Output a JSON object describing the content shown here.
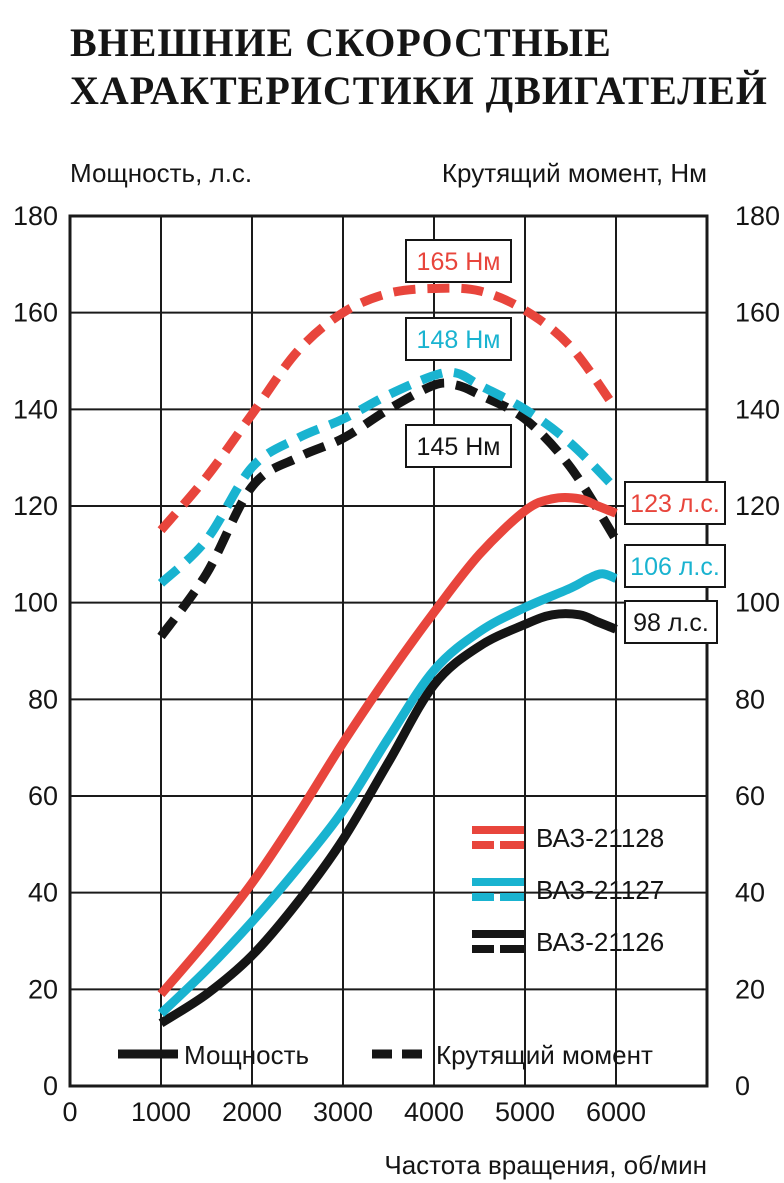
{
  "chart_data": {
    "type": "line",
    "title_lines": [
      "ВНЕШНИЕ СКОРОСТНЫЕ",
      "ХАРАКТЕРИСТИКИ ДВИГАТЕЛЕЙ"
    ],
    "ylabel_left": "Мощность, л.с.",
    "ylabel_right": "Крутящий момент, Нм",
    "xlabel": "Частота вращения, об/мин",
    "xlim": [
      0,
      7000
    ],
    "ylim": [
      0,
      180
    ],
    "x_ticks": [
      "0",
      "1000",
      "2000",
      "3000",
      "4000",
      "5000",
      "6000"
    ],
    "y_ticks": [
      "0",
      "20",
      "40",
      "60",
      "80",
      "100",
      "120",
      "140",
      "160",
      "180"
    ],
    "grid": true,
    "colors": {
      "VAZ-21128": "#e8453c",
      "VAZ-21127": "#19b3d0",
      "VAZ-21126": "#151515"
    },
    "series": [
      {
        "name": "ВАЗ-21128 мощность",
        "engine": "VAZ-21128",
        "kind": "power",
        "x": [
          1000,
          1500,
          2000,
          2500,
          3000,
          3500,
          4000,
          4500,
          5000,
          5300,
          5600,
          5800,
          6000
        ],
        "values": [
          19,
          30,
          42,
          56,
          71,
          85,
          98,
          110,
          119,
          121.5,
          121.5,
          120,
          118.5
        ]
      },
      {
        "name": "ВАЗ-21127 мощность",
        "engine": "VAZ-21127",
        "kind": "power",
        "x": [
          1000,
          1500,
          2000,
          2500,
          3000,
          3500,
          4000,
          4500,
          5000,
          5500,
          5700,
          5850,
          6000
        ],
        "values": [
          15,
          24,
          34,
          45,
          57,
          72,
          86,
          94,
          99,
          103,
          105,
          106,
          105
        ]
      },
      {
        "name": "ВАЗ-21126 мощность",
        "engine": "VAZ-21126",
        "kind": "power",
        "x": [
          1000,
          1500,
          2000,
          2500,
          3000,
          3500,
          4000,
          4500,
          5000,
          5300,
          5600,
          5800,
          6000
        ],
        "values": [
          13,
          19,
          27,
          38,
          51,
          67,
          83,
          91,
          95.5,
          97.5,
          97.5,
          96,
          94.5
        ]
      },
      {
        "name": "ВАЗ-21128 момент",
        "engine": "VAZ-21128",
        "kind": "torque",
        "x": [
          1000,
          1500,
          2000,
          2500,
          3000,
          3500,
          4000,
          4500,
          5000,
          5500,
          6000
        ],
        "values": [
          115,
          126,
          139,
          152,
          160,
          164,
          165,
          164.5,
          160.5,
          153,
          140
        ]
      },
      {
        "name": "ВАЗ-21127 момент",
        "engine": "VAZ-21127",
        "kind": "torque",
        "x": [
          1000,
          1500,
          2000,
          2500,
          3000,
          3500,
          4000,
          4250,
          4500,
          5000,
          5500,
          6000
        ],
        "values": [
          104,
          113,
          128,
          134,
          138,
          143,
          147,
          147.5,
          145,
          140,
          133,
          123.5
        ]
      },
      {
        "name": "ВАЗ-21126 момент",
        "engine": "VAZ-21126",
        "kind": "torque",
        "x": [
          1000,
          1500,
          2000,
          2500,
          3000,
          3500,
          4000,
          4250,
          4500,
          5000,
          5500,
          6000
        ],
        "values": [
          93,
          106,
          124,
          130,
          134,
          140,
          145,
          145,
          143,
          138,
          128,
          113
        ]
      }
    ],
    "callouts": [
      {
        "text": "165 Нм",
        "engine": "VAZ-21128"
      },
      {
        "text": "148 Нм",
        "engine": "VAZ-21127"
      },
      {
        "text": "145 Нм",
        "engine": "VAZ-21126"
      },
      {
        "text": "123 л.с.",
        "engine": "VAZ-21128"
      },
      {
        "text": "106 л.с.",
        "engine": "VAZ-21127"
      },
      {
        "text": "98 л.с.",
        "engine": "VAZ-21126"
      }
    ],
    "legend_engines": [
      {
        "label": "ВАЗ-21128",
        "engine": "VAZ-21128"
      },
      {
        "label": "ВАЗ-21127",
        "engine": "VAZ-21127"
      },
      {
        "label": "ВАЗ-21126",
        "engine": "VAZ-21126"
      }
    ],
    "legend_styles": [
      {
        "label": "Мощность",
        "kind": "power"
      },
      {
        "label": "Крутящий момент",
        "kind": "torque"
      }
    ]
  }
}
